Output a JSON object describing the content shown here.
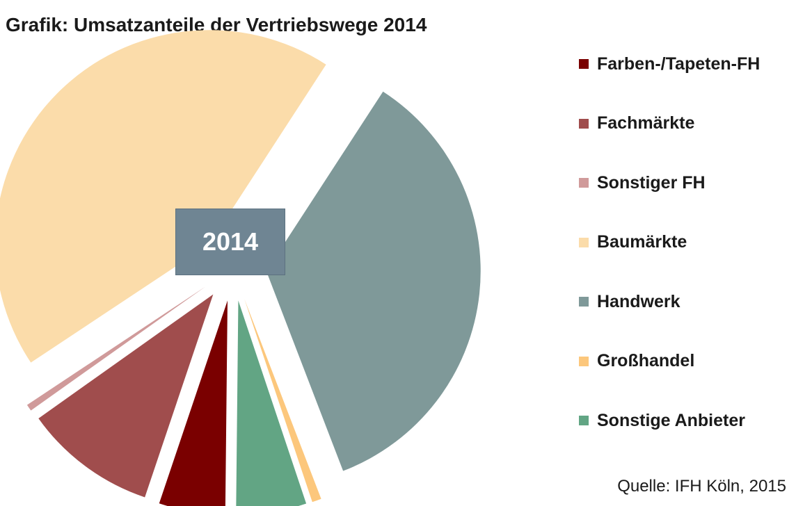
{
  "title": "Grafik: Umsatzanteile der Vertriebswege 2014",
  "center_label": "2014",
  "source": "Quelle: IFH Köln, 2015",
  "chart_data": {
    "type": "pie",
    "title": "Grafik: Umsatzanteile der Vertriebswege 2014",
    "center_label": "2014",
    "legend_position": "right",
    "slices": [
      {
        "label": "Farben-/Tapeten-FH",
        "value": 5.0,
        "color": "#7a0000"
      },
      {
        "label": "Fachmärkte",
        "value": 10.0,
        "color": "#a04d4d"
      },
      {
        "label": "Sonstiger FH",
        "value": 0.5,
        "color": "#d09a9a"
      },
      {
        "label": "Baumärkte",
        "value": 43.5,
        "color": "#fbdcaa"
      },
      {
        "label": "Handwerk",
        "value": 35.0,
        "color": "#7f9999"
      },
      {
        "label": "Großhandel",
        "value": 0.7,
        "color": "#fcc77c"
      },
      {
        "label": "Sonstige Anbieter",
        "value": 5.3,
        "color": "#62a584"
      }
    ]
  }
}
